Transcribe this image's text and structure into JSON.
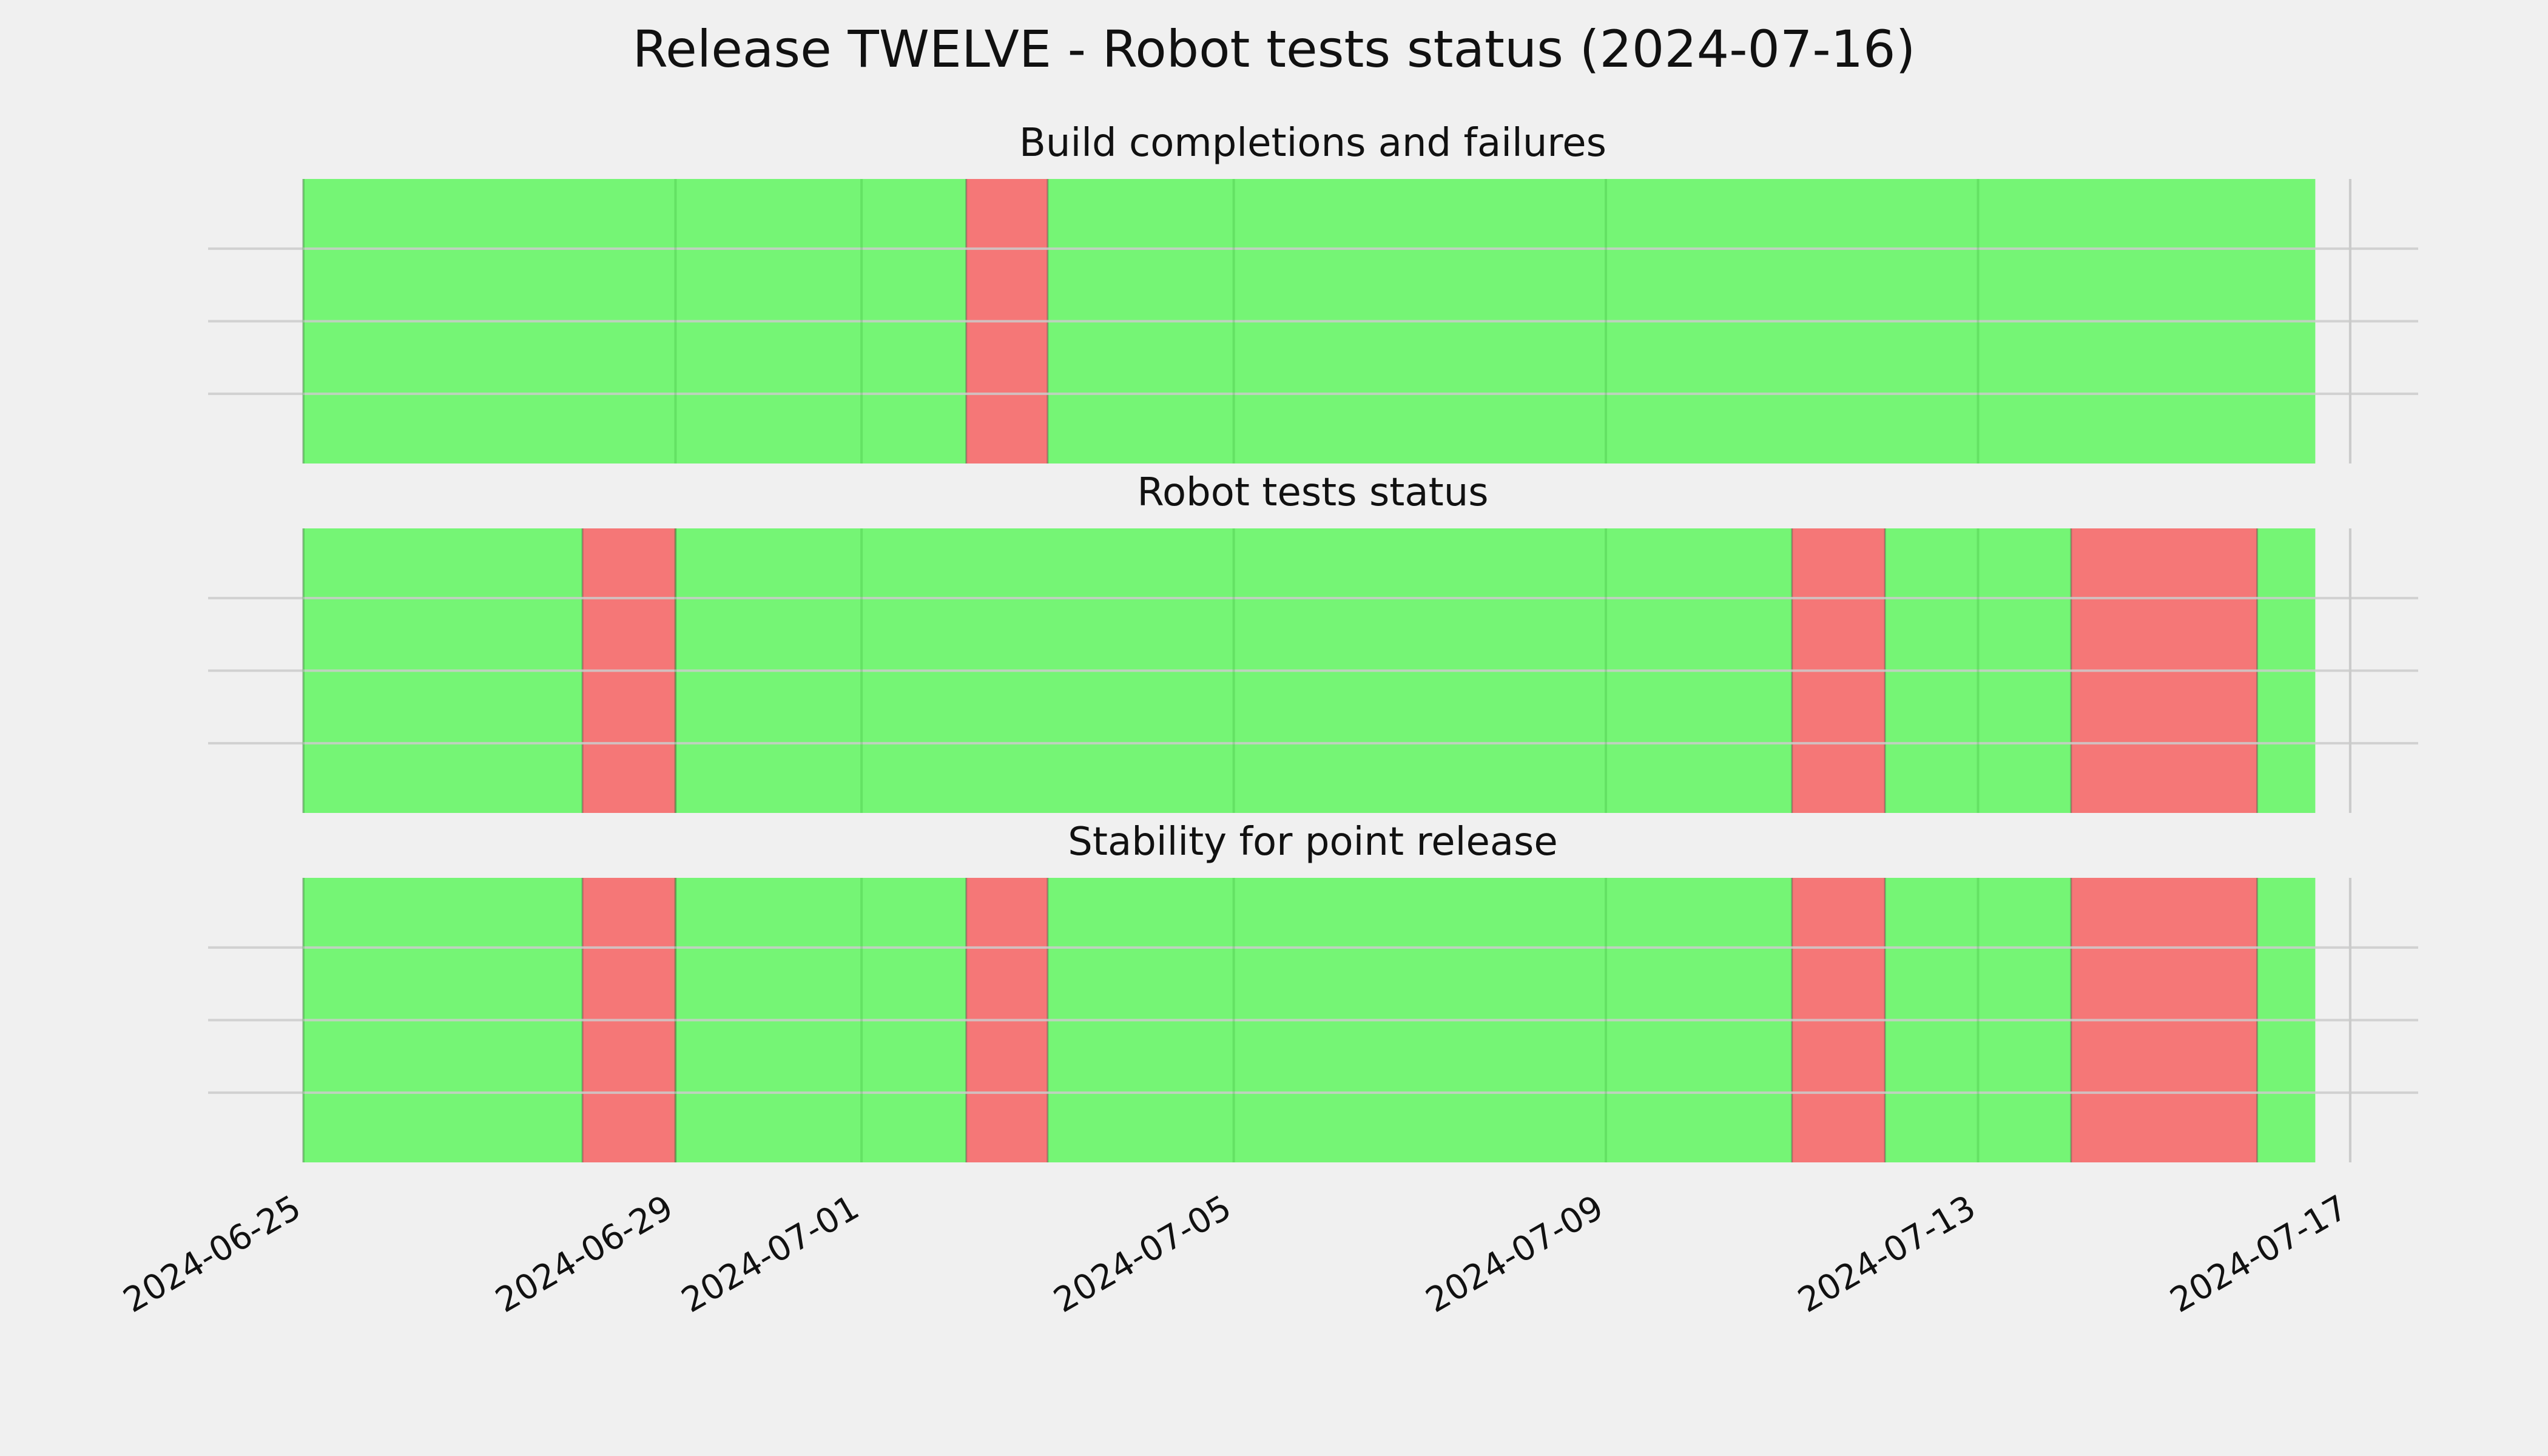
{
  "chart_data": {
    "type": "timeline",
    "title": "Release TWELVE - Robot tests status (2024-07-16)",
    "xlim": [
      "2024-06-25",
      "2024-07-18"
    ],
    "xticks": [
      "2024-06-25",
      "2024-06-29",
      "2024-07-01",
      "2024-07-05",
      "2024-07-09",
      "2024-07-13",
      "2024-07-17"
    ],
    "grid": true,
    "status_colors": {
      "pass": "#75f575",
      "fail": "#f57777"
    },
    "panels": [
      {
        "title": "Build completions and failures",
        "segments": [
          {
            "start": "2024-06-25",
            "end": "2024-07-02 03:00",
            "status": "pass"
          },
          {
            "start": "2024-07-02 03:00",
            "end": "2024-07-03",
            "status": "fail"
          },
          {
            "start": "2024-07-03",
            "end": "2024-07-16 15:00",
            "status": "pass"
          }
        ]
      },
      {
        "title": "Robot tests status",
        "segments": [
          {
            "start": "2024-06-25",
            "end": "2024-06-28",
            "status": "pass"
          },
          {
            "start": "2024-06-28",
            "end": "2024-06-29",
            "status": "fail"
          },
          {
            "start": "2024-06-29",
            "end": "2024-07-11",
            "status": "pass"
          },
          {
            "start": "2024-07-11",
            "end": "2024-07-12",
            "status": "fail"
          },
          {
            "start": "2024-07-12",
            "end": "2024-07-14",
            "status": "pass"
          },
          {
            "start": "2024-07-14",
            "end": "2024-07-16",
            "status": "fail"
          },
          {
            "start": "2024-07-16",
            "end": "2024-07-16 15:00",
            "status": "pass"
          }
        ]
      },
      {
        "title": "Stability for point release",
        "segments": [
          {
            "start": "2024-06-25",
            "end": "2024-06-28",
            "status": "pass"
          },
          {
            "start": "2024-06-28",
            "end": "2024-06-29",
            "status": "fail"
          },
          {
            "start": "2024-06-29",
            "end": "2024-07-02 03:00",
            "status": "pass"
          },
          {
            "start": "2024-07-02 03:00",
            "end": "2024-07-03",
            "status": "fail"
          },
          {
            "start": "2024-07-03",
            "end": "2024-07-11",
            "status": "pass"
          },
          {
            "start": "2024-07-11",
            "end": "2024-07-12",
            "status": "fail"
          },
          {
            "start": "2024-07-12",
            "end": "2024-07-14",
            "status": "pass"
          },
          {
            "start": "2024-07-14",
            "end": "2024-07-16",
            "status": "fail"
          },
          {
            "start": "2024-07-16",
            "end": "2024-07-16 15:00",
            "status": "pass"
          }
        ]
      }
    ]
  }
}
